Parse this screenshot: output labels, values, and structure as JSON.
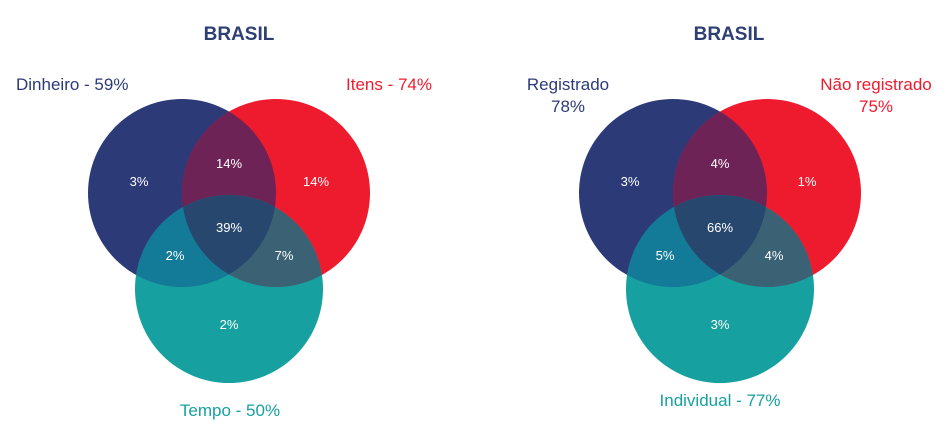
{
  "colors": {
    "navy": "#2c3b78",
    "red": "#ee1b2e",
    "teal": "#17a0a0",
    "title": "#2e3f73",
    "region_text": "#ffffff"
  },
  "diagrams": [
    {
      "title": "BRASIL",
      "sets": {
        "a": {
          "label": "Dinheiro - 59%"
        },
        "b": {
          "label": "Itens - 74%"
        },
        "c": {
          "label": "Tempo - 50%"
        }
      },
      "regions": {
        "a_only": "3%",
        "b_only": "14%",
        "c_only": "2%",
        "ab": "14%",
        "ac": "2%",
        "bc": "7%",
        "abc": "39%"
      }
    },
    {
      "title": "BRASIL",
      "sets": {
        "a": {
          "label_line1": "Registrado",
          "label_line2": "78%"
        },
        "b": {
          "label_line1": "Não registrado",
          "label_line2": "75%"
        },
        "c": {
          "label": "Individual - 77%"
        }
      },
      "regions": {
        "a_only": "3%",
        "b_only": "1%",
        "c_only": "3%",
        "ab": "4%",
        "ac": "5%",
        "bc": "4%",
        "abc": "66%"
      }
    }
  ]
}
